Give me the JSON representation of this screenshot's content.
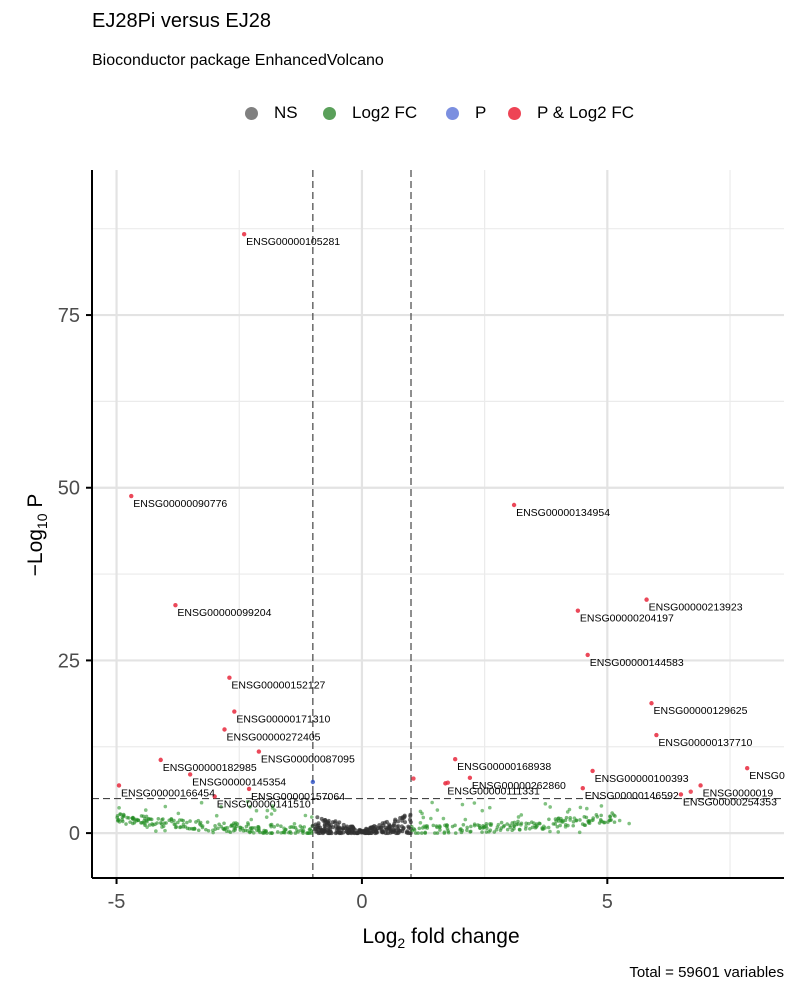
{
  "title": "EJ28Pi versus EJ28",
  "subtitle": "Bioconductor package EnhancedVolcano",
  "caption": "Total = 59601 variables",
  "legend": [
    {
      "label": "NS",
      "color": "#808080"
    },
    {
      "label": "Log2 FC",
      "color": "#5aa05a"
    },
    {
      "label": "P",
      "color": "#7b8fe0"
    },
    {
      "label": "P & Log2 FC",
      "color": "#ee4455"
    }
  ],
  "chart_data": {
    "type": "scatter",
    "xlabel": "Log2 fold change",
    "ylabel": "-Log10 P",
    "xlim": [
      -5.5,
      8.6
    ],
    "ylim": [
      -6.5,
      96
    ],
    "x_ticks": [
      -5,
      0,
      5
    ],
    "y_ticks": [
      0,
      25,
      50,
      75
    ],
    "fc_cutoff": 1,
    "p_cutoff_log10": 5,
    "grid": true,
    "legend_position": "top",
    "labeled_points": [
      {
        "label": "ENSG00000105281",
        "x": -2.4,
        "y": 86.7
      },
      {
        "label": "ENSG00000090776",
        "x": -4.7,
        "y": 48.8
      },
      {
        "label": "ENSG00000134954",
        "x": 3.1,
        "y": 47.5
      },
      {
        "label": "ENSG00000099204",
        "x": -3.8,
        "y": 33.0
      },
      {
        "label": "ENSG00000213923",
        "x": 5.8,
        "y": 33.8
      },
      {
        "label": "ENSG00000204197",
        "x": 4.4,
        "y": 32.2
      },
      {
        "label": "ENSG00000144583",
        "x": 4.6,
        "y": 25.8
      },
      {
        "label": "ENSG00000152127",
        "x": -2.7,
        "y": 22.5
      },
      {
        "label": "ENSG00000129625",
        "x": 5.9,
        "y": 18.8
      },
      {
        "label": "ENSG00000171310",
        "x": -2.6,
        "y": 17.6
      },
      {
        "label": "ENSG00000272405",
        "x": -2.8,
        "y": 15.0
      },
      {
        "label": "ENSG00000137710",
        "x": 6.0,
        "y": 14.2
      },
      {
        "label": "ENSG00000087095",
        "x": -2.1,
        "y": 11.8
      },
      {
        "label": "ENSG00000168938",
        "x": 1.9,
        "y": 10.7
      },
      {
        "label": "ENSG00000182985",
        "x": -4.1,
        "y": 10.6
      },
      {
        "label": "ENSG00000100393",
        "x": 4.7,
        "y": 9.0
      },
      {
        "label": "ENSG00000262860",
        "x": 2.2,
        "y": 8.0
      },
      {
        "label": "ENSG00000145354",
        "x": -3.5,
        "y": 8.5
      },
      {
        "label": "ENSG00000111331",
        "x": 1.7,
        "y": 7.2
      },
      {
        "label": "ENSG00000166454",
        "x": -4.95,
        "y": 6.9
      },
      {
        "label": "ENSG00000157064",
        "x": -2.3,
        "y": 6.4
      },
      {
        "label": "ENSG00000146592",
        "x": 4.5,
        "y": 6.5
      },
      {
        "label": "ENSG00000141510",
        "x": -3.0,
        "y": 5.3
      },
      {
        "label": "ENSG00000254353",
        "x": 6.5,
        "y": 5.6
      },
      {
        "label": "ENSG0000019",
        "x": 6.9,
        "y": 6.9
      },
      {
        "label": "ENSG0",
        "x": 7.85,
        "y": 9.4
      }
    ],
    "extra_points": [
      {
        "x": -1.0,
        "y": 7.4,
        "group": "P"
      },
      {
        "x": 1.05,
        "y": 7.9,
        "group": "P & Log2 FC"
      },
      {
        "x": 6.7,
        "y": 6.0,
        "group": "P & Log2 FC"
      },
      {
        "x": 1.75,
        "y": 7.3,
        "group": "P & Log2 FC"
      }
    ]
  }
}
